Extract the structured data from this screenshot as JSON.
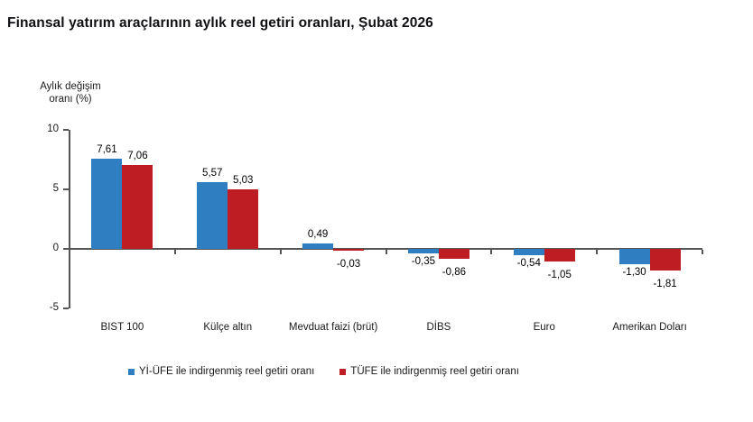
{
  "title": "Finansal yatırım araçlarının aylık reel getiri oranları, Şubat 2026",
  "y_axis": {
    "lines": [
      "Aylık değişim",
      "oranı (%)"
    ]
  },
  "colors": {
    "series_blue": "#2E7EC1",
    "series_red": "#BE1E23",
    "axis": "#555555",
    "text": "#1a1a1a"
  },
  "legend": [
    {
      "label": "Yİ-ÜFE ile indirgenmiş reel getiri oranı",
      "color": "#2E7EC1"
    },
    {
      "label": "TÜFE ile indirgenmiş reel getiri oranı",
      "color": "#BE1E23"
    }
  ],
  "chart_data": {
    "type": "bar",
    "title": "Finansal yatırım araçlarının aylık reel getiri oranları, Şubat 2026",
    "categories": [
      "BIST 100",
      "Külçe altın",
      "Mevduat faizi (brüt)",
      "DİBS",
      "Euro",
      "Amerikan Doları"
    ],
    "series": [
      {
        "name": "Yİ-ÜFE ile indirgenmiş reel getiri oranı",
        "color": "#2E7EC1",
        "values": [
          7.61,
          5.57,
          0.49,
          -0.35,
          -0.54,
          -1.3
        ]
      },
      {
        "name": "TÜFE ile indirgenmiş reel getiri oranı",
        "color": "#BE1E23",
        "values": [
          7.06,
          5.03,
          -0.03,
          -0.86,
          -1.05,
          -1.81
        ]
      }
    ],
    "xlabel": "",
    "ylabel": "Aylık değişim oranı (%)",
    "ylim": [
      -5,
      10
    ],
    "yticks": [
      10,
      5,
      0,
      -5
    ],
    "grid": false,
    "legend_position": "bottom",
    "value_label_format": "comma-decimal-2"
  }
}
